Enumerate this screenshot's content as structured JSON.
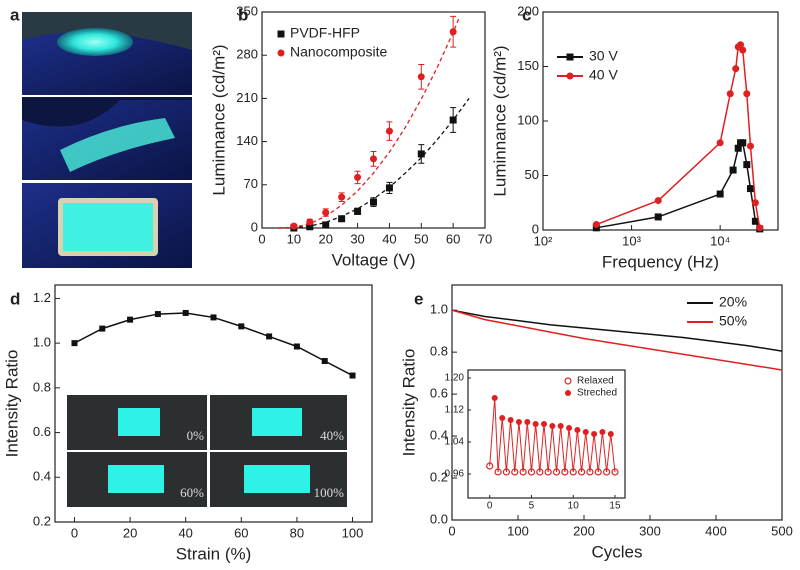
{
  "photo_panel": {
    "label": "a"
  },
  "chart_data": [
    {
      "type": "scatter",
      "label": "b",
      "xlabel": "Voltage (V)",
      "ylabel": "Luminnance (cd/m²)",
      "xlim": [
        0,
        70
      ],
      "xticks": [
        0,
        10,
        20,
        30,
        40,
        50,
        60,
        70
      ],
      "ylim": [
        0,
        350
      ],
      "yticks": [
        0,
        70,
        140,
        210,
        280,
        350
      ],
      "legend": "upper left",
      "x": [
        10,
        15,
        20,
        25,
        30,
        35,
        40,
        50,
        60
      ],
      "series": [
        {
          "name": "PVDF-HFP",
          "color": "#111111",
          "marker": "square",
          "values": [
            0,
            2,
            5,
            15,
            27,
            42,
            65,
            120,
            175
          ],
          "errors": [
            2,
            2,
            3,
            4,
            5,
            7,
            9,
            15,
            20
          ],
          "fit": {
            "x": [
              5,
              10,
              15,
              20,
              25,
              30,
              35,
              40,
              45,
              50,
              55,
              60,
              65
            ],
            "values": [
              0,
              0.3,
              3,
              9,
              19,
              31,
              47,
              66,
              89,
              114,
              143,
              175,
              210
            ]
          }
        },
        {
          "name": "Nanocomposite",
          "color": "#e02020",
          "marker": "circle",
          "values": [
            3,
            10,
            25,
            50,
            82,
            112,
            157,
            245,
            318
          ],
          "errors": [
            3,
            4,
            6,
            7,
            10,
            12,
            15,
            20,
            25
          ],
          "fit": {
            "x": [
              5,
              10,
              15,
              20,
              25,
              30,
              35,
              40,
              45,
              50,
              55,
              60,
              62
            ],
            "values": [
              0,
              1,
              7,
              19,
              37,
              60,
              89,
              123,
              163,
              209,
              260,
              317,
              342
            ]
          }
        }
      ]
    },
    {
      "type": "line",
      "label": "c",
      "xlabel": "Frequency (Hz)",
      "ylabel": "Luminnance (cd/m²)",
      "xscale": "log",
      "xlim": [
        100,
        45000
      ],
      "xticks": [
        {
          "value": 100,
          "label": "10²"
        },
        {
          "value": 1000,
          "label": "10³"
        },
        {
          "value": 10000,
          "label": "10⁴"
        }
      ],
      "ylim": [
        0,
        200
      ],
      "yticks": [
        0,
        50,
        100,
        150,
        200
      ],
      "legend": "upper left",
      "series": [
        {
          "name": "30 V",
          "color": "#111111",
          "marker": "square",
          "x": [
            400,
            2000,
            10000,
            14000,
            16000,
            17000,
            18000,
            20000,
            22000,
            25000,
            28000
          ],
          "values": [
            2,
            12,
            33,
            55,
            75,
            80,
            80,
            60,
            38,
            8,
            1
          ]
        },
        {
          "name": "40 V",
          "color": "#e02020",
          "marker": "circle",
          "x": [
            400,
            2000,
            10000,
            13000,
            15000,
            16000,
            17000,
            18000,
            20000,
            22000,
            25000,
            28000
          ],
          "values": [
            5,
            27,
            80,
            125,
            148,
            168,
            170,
            165,
            125,
            77,
            25,
            2
          ]
        }
      ]
    },
    {
      "type": "line",
      "label": "d",
      "xlabel": "Strain (%)",
      "ylabel": "Intensity Ratio",
      "xlim": [
        -7,
        107
      ],
      "xticks": [
        0,
        20,
        40,
        60,
        80,
        100
      ],
      "ylim": [
        0.2,
        1.26
      ],
      "yticks": [
        0.2,
        0.4,
        0.6,
        0.8,
        {
          "value": 1.0,
          "label": "1.0"
        },
        1.2
      ],
      "x": [
        0,
        10,
        20,
        30,
        40,
        50,
        60,
        70,
        80,
        90,
        100
      ],
      "series": [
        {
          "color": "#111111",
          "marker": "square",
          "values": [
            1.0,
            1.065,
            1.105,
            1.13,
            1.135,
            1.115,
            1.075,
            1.03,
            0.985,
            0.92,
            0.855
          ]
        }
      ],
      "photo_labels": [
        "0%",
        "40%",
        "60%",
        "100%"
      ]
    },
    {
      "type": "line",
      "label": "e",
      "xlabel": "Cycles",
      "ylabel": "Intensity Ratio",
      "xlim": [
        0,
        500
      ],
      "xticks": [
        0,
        100,
        200,
        300,
        400,
        500
      ],
      "ylim": [
        0,
        1.12
      ],
      "yticks": [
        {
          "value": 0,
          "label": "0.0"
        },
        0.2,
        0.4,
        0.6,
        0.8,
        {
          "value": 1.0,
          "label": "1.0"
        }
      ],
      "legend": "upper right",
      "x": [
        0,
        50,
        100,
        150,
        200,
        250,
        300,
        350,
        400,
        450,
        500
      ],
      "series": [
        {
          "name": "20%",
          "color": "#111111",
          "values": [
            1.0,
            0.97,
            0.95,
            0.93,
            0.915,
            0.9,
            0.885,
            0.87,
            0.85,
            0.83,
            0.805
          ]
        },
        {
          "name": "50%",
          "color": "#e02020",
          "values": [
            1.0,
            0.955,
            0.925,
            0.895,
            0.865,
            0.84,
            0.815,
            0.79,
            0.765,
            0.74,
            0.715
          ]
        }
      ],
      "inset": {
        "type": "scatter",
        "xlim": [
          -2.6,
          16.2
        ],
        "xticks": [
          0,
          5,
          10,
          15
        ],
        "ylim": [
          0.9,
          1.22
        ],
        "yticks": [
          0.96,
          1.04,
          1.12,
          {
            "value": 1.2,
            "label": "1.20"
          }
        ],
        "legend": "upper right",
        "series": [
          {
            "name": "Relaxed",
            "color": "#e02020",
            "marker": "open-circle",
            "x": [
              0,
              1,
              2,
              3,
              4,
              5,
              6,
              7,
              8,
              9,
              10,
              11,
              12,
              13,
              14,
              15
            ],
            "values": [
              0.98,
              0.965,
              0.965,
              0.965,
              0.965,
              0.965,
              0.965,
              0.965,
              0.965,
              0.965,
              0.965,
              0.965,
              0.965,
              0.965,
              0.965,
              0.965
            ]
          },
          {
            "name": "Streched",
            "color": "#e02020",
            "marker": "circle",
            "x": [
              0.6,
              1.5,
              2.5,
              3.5,
              4.5,
              5.5,
              6.5,
              7.5,
              8.5,
              9.5,
              10.5,
              11.5,
              12.5,
              13.5,
              14.5
            ],
            "values": [
              1.15,
              1.1,
              1.095,
              1.09,
              1.09,
              1.085,
              1.085,
              1.08,
              1.08,
              1.075,
              1.07,
              1.065,
              1.06,
              1.065,
              1.06
            ]
          }
        ]
      }
    }
  ]
}
